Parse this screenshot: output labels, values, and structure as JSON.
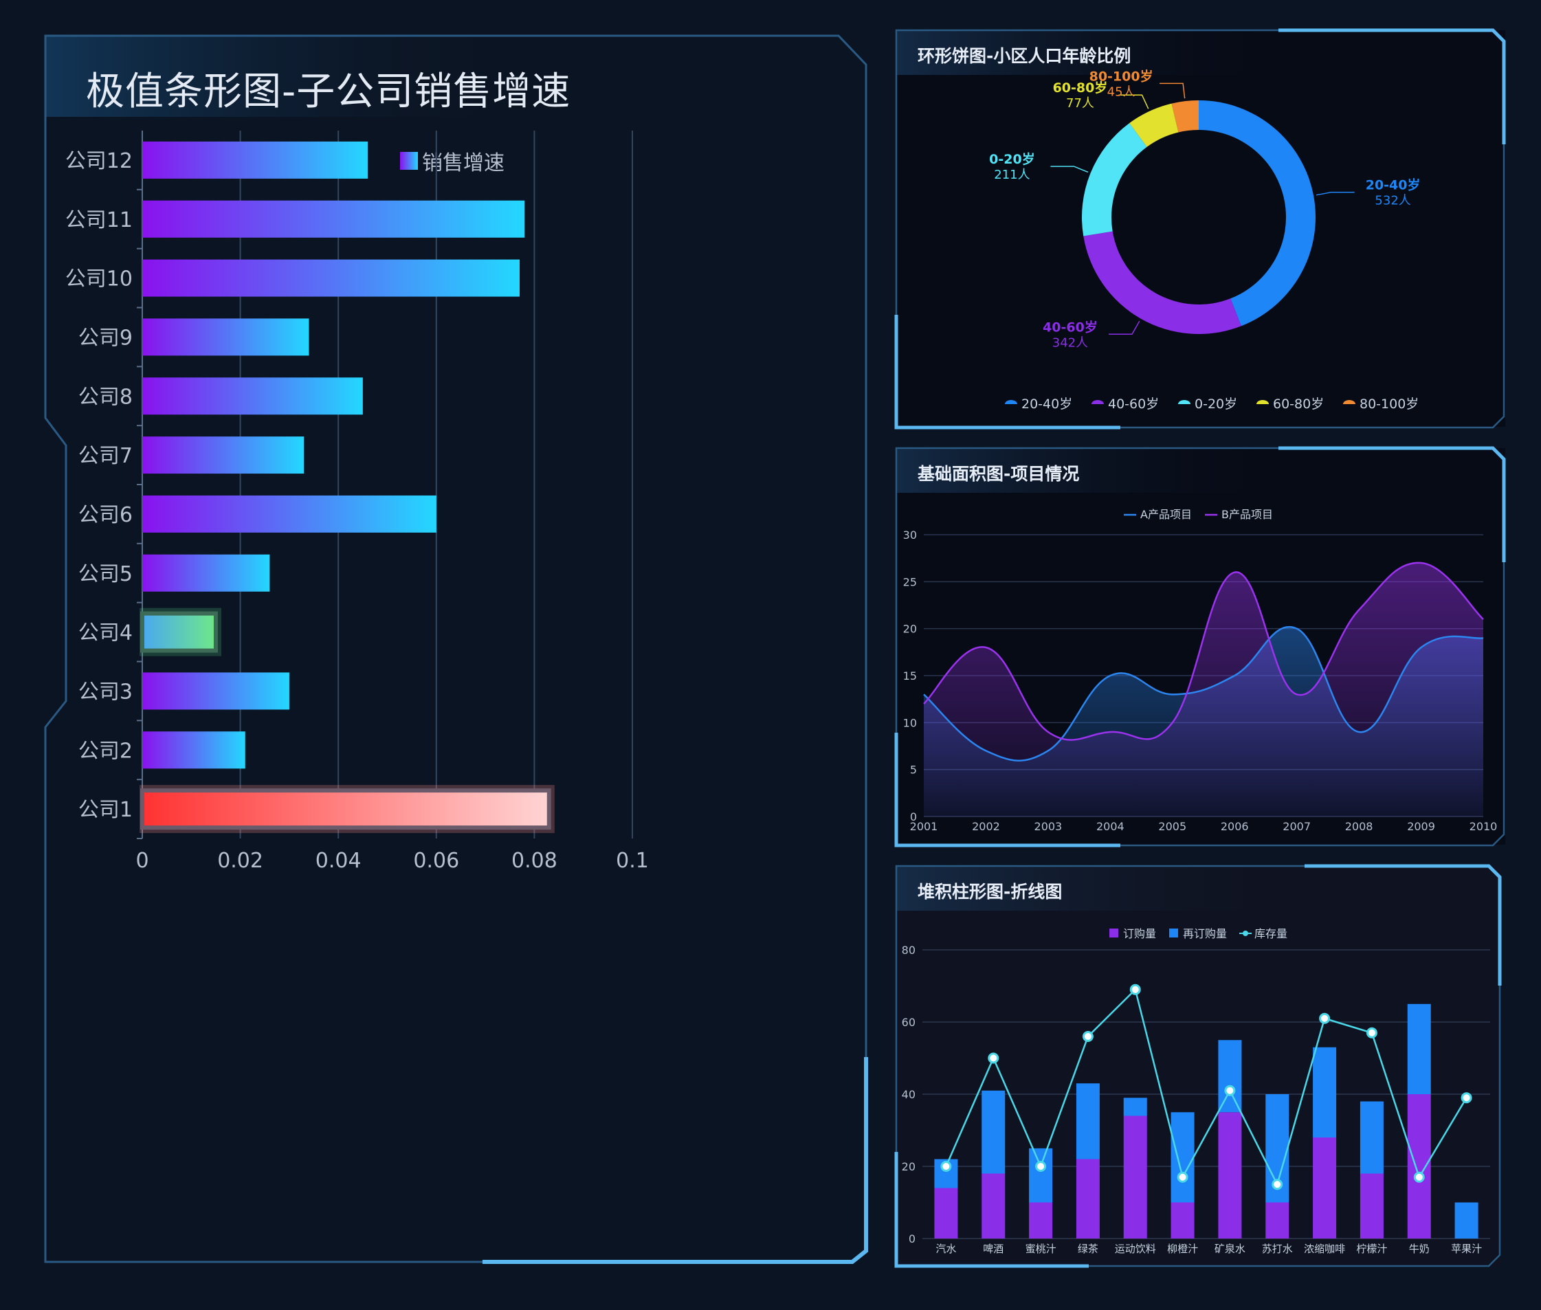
{
  "panels": {
    "bar": {
      "title": "极值条形图-子公司销售增速",
      "legend": "销售增速"
    },
    "pie": {
      "title": "环形饼图-小区人口年龄比例"
    },
    "area": {
      "title": "基础面积图-项目情况"
    },
    "stack": {
      "title": "堆积柱形图-折线图"
    }
  },
  "colors": {
    "background": "#0b1422",
    "frame": "#2a5a84",
    "accent": "#5cb8f0",
    "bar_start": "#8a12ee",
    "bar_end": "#23d8ff",
    "min_bar_start": "#4aa8f0",
    "min_bar_end": "#6ee888",
    "max_bar_start": "#ff3232",
    "max_bar_end": "#ffd4d4"
  },
  "chart_data": [
    {
      "type": "bar",
      "orientation": "horizontal",
      "title": "极值条形图-子公司销售增速",
      "categories": [
        "公司1",
        "公司2",
        "公司3",
        "公司4",
        "公司5",
        "公司6",
        "公司7",
        "公司8",
        "公司9",
        "公司10",
        "公司11",
        "公司12"
      ],
      "series": [
        {
          "name": "销售增速",
          "values": [
            0.083,
            0.021,
            0.03,
            0.015,
            0.026,
            0.06,
            0.033,
            0.045,
            0.034,
            0.077,
            0.078,
            0.046
          ]
        }
      ],
      "xlim": [
        0,
        0.1
      ],
      "xticks": [
        "0",
        "0.02",
        "0.04",
        "0.06",
        "0.08",
        "0.1"
      ],
      "highlight": {
        "max": "公司1",
        "min": "公司4"
      },
      "grid": true,
      "legend_position": "top-center"
    },
    {
      "type": "pie",
      "variant": "donut",
      "title": "环形饼图-小区人口年龄比例",
      "slices": [
        {
          "label": "20-40岁",
          "value": 532,
          "value_label": "532人",
          "color": "#1e86f6"
        },
        {
          "label": "40-60岁",
          "value": 342,
          "value_label": "342人",
          "color": "#8a2ee8"
        },
        {
          "label": "0-20岁",
          "value": 211,
          "value_label": "211人",
          "color": "#50e4f6"
        },
        {
          "label": "60-80岁",
          "value": 77,
          "value_label": "77人",
          "color": "#e2e22e"
        },
        {
          "label": "80-100岁",
          "value": 45,
          "value_label": "45人",
          "color": "#f28a32"
        }
      ],
      "legend_position": "bottom-center"
    },
    {
      "type": "area",
      "title": "基础面积图-项目情况",
      "x": [
        "2001",
        "2002",
        "2003",
        "2004",
        "2005",
        "2006",
        "2007",
        "2008",
        "2009",
        "2010"
      ],
      "series": [
        {
          "name": "A产品项目",
          "color": "#2c86f0",
          "values": [
            13,
            7,
            7,
            15,
            13,
            15,
            20,
            9,
            18,
            19
          ]
        },
        {
          "name": "B产品项目",
          "color": "#9a32ee",
          "values": [
            12,
            18,
            9,
            9,
            10,
            26,
            13,
            22,
            27,
            21
          ]
        }
      ],
      "ylim": [
        0,
        30
      ],
      "yticks": [
        "0",
        "5",
        "10",
        "15",
        "20",
        "25",
        "30"
      ],
      "grid": true,
      "legend_position": "top-center"
    },
    {
      "type": "bar",
      "variant": "stacked-with-line",
      "title": "堆积柱形图-折线图",
      "categories": [
        "汽水",
        "啤酒",
        "蜜桃汁",
        "绿茶",
        "运动饮料",
        "柳橙汁",
        "矿泉水",
        "苏打水",
        "浓缩咖啡",
        "柠檬汁",
        "牛奶",
        "苹果汁"
      ],
      "series": [
        {
          "name": "订购量",
          "kind": "bar",
          "color": "#8a2ee8",
          "values": [
            14,
            18,
            10,
            22,
            34,
            10,
            35,
            10,
            28,
            18,
            40,
            0
          ]
        },
        {
          "name": "再订购量",
          "kind": "bar",
          "color": "#1e86f6",
          "values": [
            8,
            23,
            15,
            21,
            5,
            25,
            20,
            30,
            25,
            20,
            25,
            10
          ]
        },
        {
          "name": "库存量",
          "kind": "line",
          "color": "#4ad8e8",
          "values": [
            20,
            50,
            20,
            56,
            69,
            17,
            41,
            15,
            61,
            57,
            17,
            39
          ]
        }
      ],
      "ylim": [
        0,
        80
      ],
      "yticks": [
        "0",
        "20",
        "40",
        "60",
        "80"
      ],
      "grid": true,
      "legend_position": "top-center"
    }
  ]
}
